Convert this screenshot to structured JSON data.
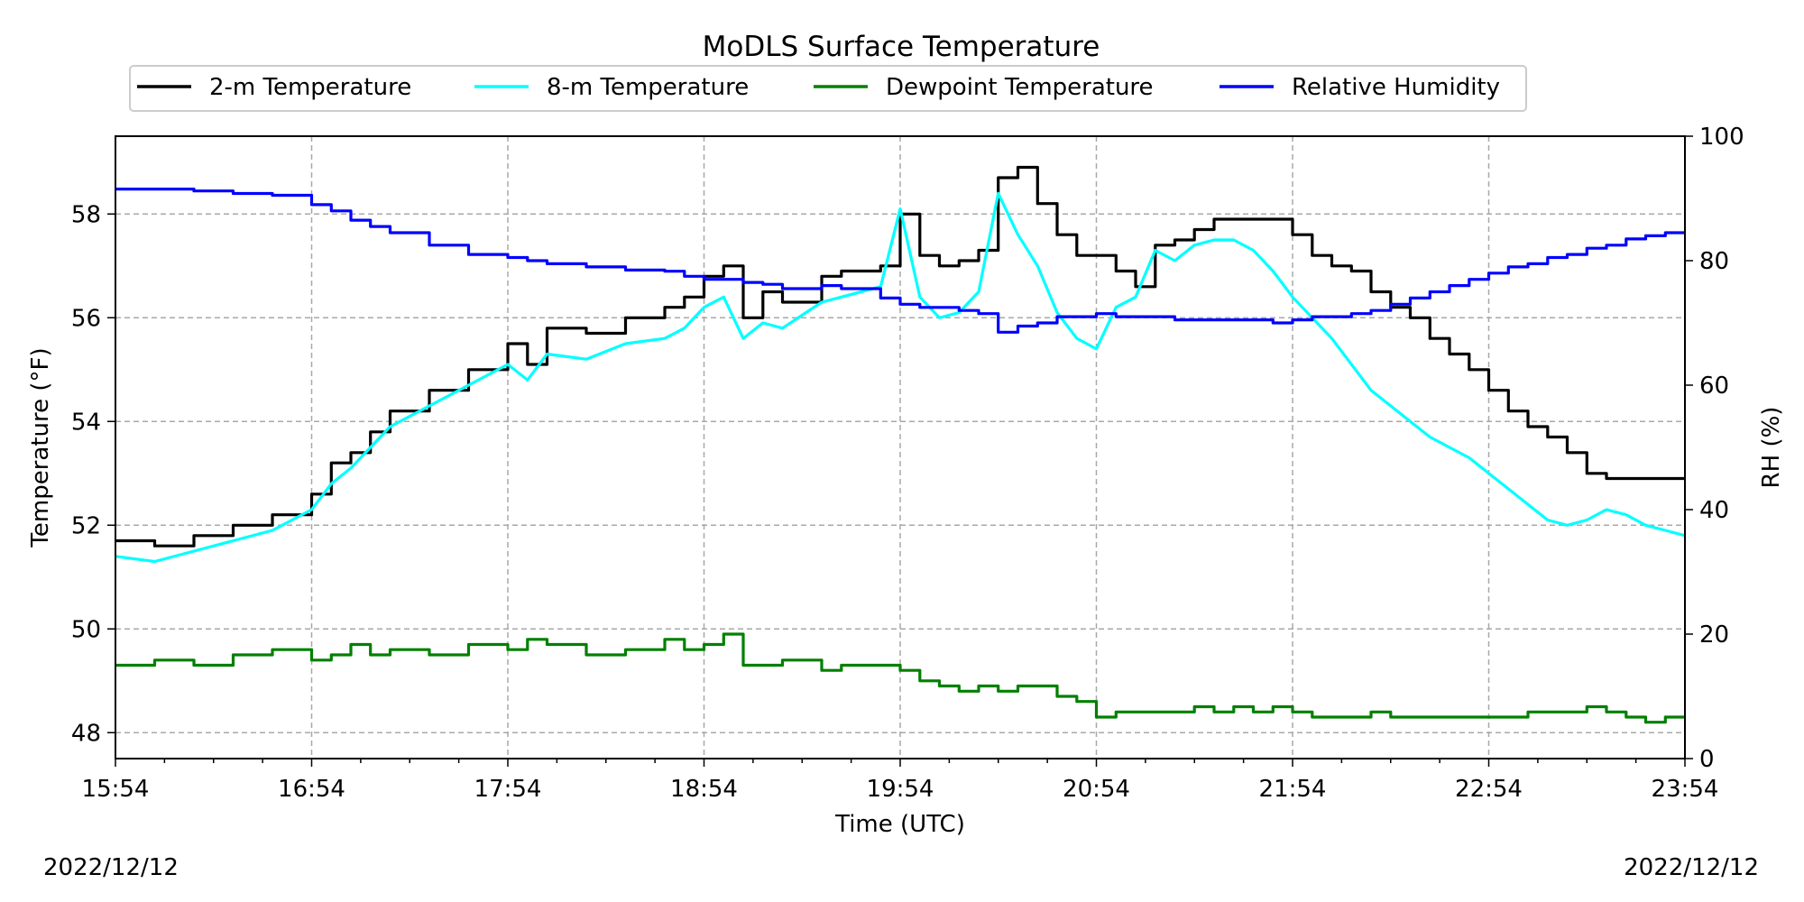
{
  "chart_data": {
    "type": "line",
    "title": "MoDLS Surface Temperature",
    "xlabel": "Time (UTC)",
    "ylabel": "Temperature ($^\\circ$F)",
    "ylabel_display": "Temperature (°F)",
    "ylabel_right": "RH (%)",
    "date_left": "2022/12/12",
    "date_right": "2022/12/12",
    "x_ticks": [
      "15:54",
      "16:54",
      "17:54",
      "18:54",
      "19:54",
      "20:54",
      "21:54",
      "22:54",
      "23:54"
    ],
    "x_range_hours": [
      15.9,
      23.9
    ],
    "ylim": [
      47.5,
      59.5
    ],
    "y_ticks": [
      "48",
      "50",
      "52",
      "54",
      "56",
      "58"
    ],
    "ylim_right": [
      0,
      100
    ],
    "y_ticks_right": [
      "0",
      "20",
      "40",
      "60",
      "80",
      "100"
    ],
    "grid": true,
    "legend_placement": "top-center",
    "series": [
      {
        "name": "2-m Temperature",
        "color": "#000000",
        "axis": "left",
        "x": [
          15.9,
          16.1,
          16.3,
          16.5,
          16.7,
          16.9,
          17.0,
          17.1,
          17.2,
          17.3,
          17.5,
          17.7,
          17.9,
          18.0,
          18.1,
          18.3,
          18.5,
          18.7,
          18.8,
          18.9,
          19.0,
          19.1,
          19.2,
          19.3,
          19.5,
          19.6,
          19.8,
          19.9,
          20.0,
          20.1,
          20.2,
          20.3,
          20.4,
          20.5,
          20.6,
          20.7,
          20.8,
          20.9,
          21.0,
          21.1,
          21.2,
          21.3,
          21.4,
          21.5,
          21.6,
          21.7,
          21.8,
          21.9,
          22.0,
          22.1,
          22.2,
          22.3,
          22.4,
          22.5,
          22.6,
          22.7,
          22.8,
          22.9,
          23.0,
          23.1,
          23.2,
          23.3,
          23.4,
          23.5,
          23.6,
          23.7,
          23.8,
          23.9
        ],
        "values": [
          51.7,
          51.6,
          51.8,
          52.0,
          52.2,
          52.6,
          53.2,
          53.4,
          53.8,
          54.2,
          54.6,
          55.0,
          55.5,
          55.1,
          55.8,
          55.7,
          56.0,
          56.2,
          56.4,
          56.8,
          57.0,
          56.0,
          56.5,
          56.3,
          56.8,
          56.9,
          57.0,
          58.0,
          57.2,
          57.0,
          57.1,
          57.3,
          58.7,
          58.9,
          58.2,
          57.6,
          57.2,
          57.2,
          56.9,
          56.6,
          57.4,
          57.5,
          57.7,
          57.9,
          57.9,
          57.9,
          57.9,
          57.6,
          57.2,
          57.0,
          56.9,
          56.5,
          56.2,
          56.0,
          55.6,
          55.3,
          55.0,
          54.6,
          54.2,
          53.9,
          53.7,
          53.4,
          53.0,
          52.9,
          52.9,
          52.9,
          52.9,
          52.9
        ]
      },
      {
        "name": "8-m Temperature",
        "color": "#00ffff",
        "axis": "left",
        "x": [
          15.9,
          16.1,
          16.3,
          16.5,
          16.7,
          16.9,
          17.0,
          17.1,
          17.2,
          17.3,
          17.5,
          17.7,
          17.9,
          18.0,
          18.1,
          18.3,
          18.5,
          18.7,
          18.8,
          18.9,
          19.0,
          19.1,
          19.2,
          19.3,
          19.5,
          19.6,
          19.8,
          19.9,
          20.0,
          20.1,
          20.2,
          20.3,
          20.4,
          20.5,
          20.6,
          20.7,
          20.8,
          20.9,
          21.0,
          21.1,
          21.2,
          21.3,
          21.4,
          21.5,
          21.6,
          21.7,
          21.8,
          21.9,
          22.0,
          22.1,
          22.2,
          22.3,
          22.4,
          22.5,
          22.6,
          22.7,
          22.8,
          22.9,
          23.0,
          23.1,
          23.2,
          23.3,
          23.4,
          23.5,
          23.6,
          23.7,
          23.8,
          23.9
        ],
        "values": [
          51.4,
          51.3,
          51.5,
          51.7,
          51.9,
          52.3,
          52.8,
          53.1,
          53.5,
          53.9,
          54.3,
          54.7,
          55.1,
          54.8,
          55.3,
          55.2,
          55.5,
          55.6,
          55.8,
          56.2,
          56.4,
          55.6,
          55.9,
          55.8,
          56.3,
          56.4,
          56.6,
          58.1,
          56.4,
          56.0,
          56.1,
          56.5,
          58.4,
          57.6,
          57.0,
          56.1,
          55.6,
          55.4,
          56.2,
          56.4,
          57.3,
          57.1,
          57.4,
          57.5,
          57.5,
          57.3,
          56.9,
          56.4,
          56.0,
          55.6,
          55.1,
          54.6,
          54.3,
          54.0,
          53.7,
          53.5,
          53.3,
          53.0,
          52.7,
          52.4,
          52.1,
          52.0,
          52.1,
          52.3,
          52.2,
          52.0,
          51.9,
          51.8
        ]
      },
      {
        "name": "Dewpoint Temperature",
        "color": "#008000",
        "axis": "left",
        "x": [
          15.9,
          16.1,
          16.3,
          16.5,
          16.7,
          16.9,
          17.0,
          17.1,
          17.2,
          17.3,
          17.5,
          17.7,
          17.9,
          18.0,
          18.1,
          18.3,
          18.5,
          18.7,
          18.8,
          18.9,
          19.0,
          19.1,
          19.2,
          19.3,
          19.5,
          19.6,
          19.8,
          19.9,
          20.0,
          20.1,
          20.2,
          20.3,
          20.4,
          20.5,
          20.6,
          20.7,
          20.8,
          20.9,
          21.0,
          21.1,
          21.2,
          21.3,
          21.4,
          21.5,
          21.6,
          21.7,
          21.8,
          21.9,
          22.0,
          22.1,
          22.2,
          22.3,
          22.4,
          22.5,
          22.6,
          22.7,
          22.8,
          22.9,
          23.0,
          23.1,
          23.2,
          23.3,
          23.4,
          23.5,
          23.6,
          23.7,
          23.8,
          23.9
        ],
        "values": [
          49.3,
          49.4,
          49.3,
          49.5,
          49.6,
          49.4,
          49.5,
          49.7,
          49.5,
          49.6,
          49.5,
          49.7,
          49.6,
          49.8,
          49.7,
          49.5,
          49.6,
          49.8,
          49.6,
          49.7,
          49.9,
          49.3,
          49.3,
          49.4,
          49.2,
          49.3,
          49.3,
          49.2,
          49.0,
          48.9,
          48.8,
          48.9,
          48.8,
          48.9,
          48.9,
          48.7,
          48.6,
          48.3,
          48.4,
          48.4,
          48.4,
          48.4,
          48.5,
          48.4,
          48.5,
          48.4,
          48.5,
          48.4,
          48.3,
          48.3,
          48.3,
          48.4,
          48.3,
          48.3,
          48.3,
          48.3,
          48.3,
          48.3,
          48.3,
          48.4,
          48.4,
          48.4,
          48.5,
          48.4,
          48.3,
          48.2,
          48.3,
          48.3
        ]
      },
      {
        "name": "Relative Humidity",
        "color": "#0000ff",
        "axis": "right",
        "x": [
          15.9,
          16.1,
          16.3,
          16.5,
          16.7,
          16.9,
          17.0,
          17.1,
          17.2,
          17.3,
          17.5,
          17.7,
          17.9,
          18.0,
          18.1,
          18.3,
          18.5,
          18.7,
          18.8,
          18.9,
          19.0,
          19.1,
          19.2,
          19.3,
          19.5,
          19.6,
          19.8,
          19.9,
          20.0,
          20.1,
          20.2,
          20.3,
          20.4,
          20.5,
          20.6,
          20.7,
          20.8,
          20.9,
          21.0,
          21.1,
          21.2,
          21.3,
          21.4,
          21.5,
          21.6,
          21.7,
          21.8,
          21.9,
          22.0,
          22.1,
          22.2,
          22.3,
          22.4,
          22.5,
          22.6,
          22.7,
          22.8,
          22.9,
          23.0,
          23.1,
          23.2,
          23.3,
          23.4,
          23.5,
          23.6,
          23.7,
          23.8,
          23.9
        ],
        "values": [
          91.5,
          91.5,
          91.2,
          90.8,
          90.5,
          89.0,
          88.0,
          86.5,
          85.5,
          84.5,
          82.5,
          81.0,
          80.5,
          80.0,
          79.5,
          79.0,
          78.5,
          78.3,
          77.5,
          77.0,
          77.0,
          76.5,
          76.2,
          75.5,
          76.0,
          75.5,
          74.0,
          73.0,
          72.5,
          72.5,
          72.0,
          71.5,
          68.5,
          69.5,
          70.0,
          71.0,
          71.0,
          71.5,
          71.0,
          71.0,
          71.0,
          70.5,
          70.5,
          70.5,
          70.5,
          70.5,
          70.0,
          70.5,
          71.0,
          71.0,
          71.5,
          72.0,
          73.0,
          74.0,
          75.0,
          76.0,
          77.0,
          78.0,
          79.0,
          79.5,
          80.5,
          81.0,
          82.0,
          82.5,
          83.5,
          84.0,
          84.5,
          84.5
        ]
      }
    ]
  }
}
